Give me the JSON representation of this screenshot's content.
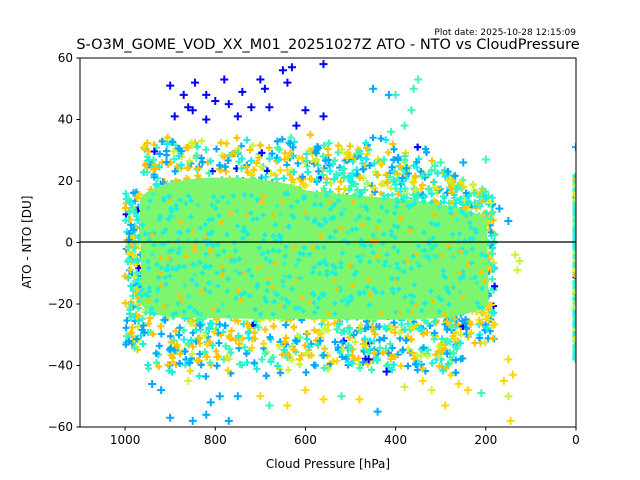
{
  "chart_data": {
    "type": "scatter",
    "title": "S-O3M_GOME_VOD_XX_M01_20251027Z ATO - NTO vs CloudPressure",
    "plot_date": "Plot date: 2025-10-28 12:15:09",
    "xlabel": "Cloud Pressure [hPa]",
    "ylabel": "ATO - NTO [DU]",
    "xlim": [
      1100,
      0
    ],
    "ylim": [
      -60,
      60
    ],
    "x_inverted": true,
    "grid": false,
    "legend": "none",
    "marker": "+",
    "x_ticks": [
      1000,
      800,
      600,
      400,
      200,
      0
    ],
    "x_tick_labels": [
      "1000",
      "800",
      "600",
      "400",
      "200",
      "0"
    ],
    "y_ticks": [
      60,
      40,
      20,
      0,
      -20,
      -40,
      -60
    ],
    "y_tick_labels": [
      "60",
      "40",
      "20",
      "0",
      "−20",
      "−40",
      "−60"
    ],
    "reference_line": {
      "y": 0,
      "color": "#000000"
    },
    "colors": {
      "core": "#7ef56f",
      "cyan": "#1af0e0",
      "aqua": "#3df5b8",
      "azure": "#00a8ff",
      "blue": "#0000ff",
      "yellow": "#ffd700",
      "gold": "#ffc400",
      "lime": "#c8f53a"
    },
    "core_region": {
      "x_range": [
        990,
        180
      ],
      "y_range": [
        -32,
        25
      ],
      "color_name": "core"
    },
    "edge_column": {
      "x": 0,
      "y_range": [
        -38,
        22
      ]
    },
    "outliers": [
      {
        "x": 900,
        "y": 51,
        "c": "blue"
      },
      {
        "x": 870,
        "y": 48,
        "c": "blue"
      },
      {
        "x": 845,
        "y": 52,
        "c": "blue"
      },
      {
        "x": 820,
        "y": 48,
        "c": "blue"
      },
      {
        "x": 780,
        "y": 53,
        "c": "blue"
      },
      {
        "x": 770,
        "y": 45,
        "c": "blue"
      },
      {
        "x": 740,
        "y": 49,
        "c": "blue"
      },
      {
        "x": 700,
        "y": 53,
        "c": "blue"
      },
      {
        "x": 690,
        "y": 50,
        "c": "blue"
      },
      {
        "x": 650,
        "y": 56,
        "c": "blue"
      },
      {
        "x": 630,
        "y": 57,
        "c": "blue"
      },
      {
        "x": 560,
        "y": 58,
        "c": "blue"
      },
      {
        "x": 640,
        "y": 52,
        "c": "blue"
      },
      {
        "x": 720,
        "y": 44,
        "c": "blue"
      },
      {
        "x": 680,
        "y": 44,
        "c": "blue"
      },
      {
        "x": 600,
        "y": 43,
        "c": "blue"
      },
      {
        "x": 560,
        "y": 41,
        "c": "blue"
      },
      {
        "x": 850,
        "y": 43,
        "c": "blue"
      },
      {
        "x": 820,
        "y": 40,
        "c": "blue"
      },
      {
        "x": 890,
        "y": 41,
        "c": "blue"
      },
      {
        "x": 860,
        "y": 44,
        "c": "blue"
      },
      {
        "x": 750,
        "y": 41,
        "c": "blue"
      },
      {
        "x": 800,
        "y": 46,
        "c": "blue"
      },
      {
        "x": 620,
        "y": 38,
        "c": "blue"
      },
      {
        "x": 450,
        "y": 50,
        "c": "azure"
      },
      {
        "x": 415,
        "y": 48,
        "c": "azure"
      },
      {
        "x": 400,
        "y": 48,
        "c": "aqua"
      },
      {
        "x": 350,
        "y": 53,
        "c": "aqua"
      },
      {
        "x": 360,
        "y": 50,
        "c": "aqua"
      },
      {
        "x": 365,
        "y": 43,
        "c": "aqua"
      },
      {
        "x": 380,
        "y": 38,
        "c": "aqua"
      },
      {
        "x": 410,
        "y": 36,
        "c": "aqua"
      },
      {
        "x": 300,
        "y": 26,
        "c": "aqua"
      },
      {
        "x": 250,
        "y": 26,
        "c": "azure"
      },
      {
        "x": 200,
        "y": 27,
        "c": "aqua"
      },
      {
        "x": 170,
        "y": 11,
        "c": "azure"
      },
      {
        "x": 150,
        "y": 7,
        "c": "azure"
      },
      {
        "x": 0,
        "y": 31,
        "c": "azure"
      },
      {
        "x": 850,
        "y": -58,
        "c": "azure"
      },
      {
        "x": 820,
        "y": -56,
        "c": "azure"
      },
      {
        "x": 770,
        "y": -58,
        "c": "azure"
      },
      {
        "x": 810,
        "y": -52,
        "c": "azure"
      },
      {
        "x": 790,
        "y": -50,
        "c": "azure"
      },
      {
        "x": 750,
        "y": -50,
        "c": "azure"
      },
      {
        "x": 900,
        "y": -57,
        "c": "azure"
      },
      {
        "x": 940,
        "y": -46,
        "c": "azure"
      },
      {
        "x": 920,
        "y": -48,
        "c": "azure"
      },
      {
        "x": 860,
        "y": -45,
        "c": "lime"
      },
      {
        "x": 700,
        "y": -50,
        "c": "yellow"
      },
      {
        "x": 680,
        "y": -53,
        "c": "aqua"
      },
      {
        "x": 640,
        "y": -53,
        "c": "yellow"
      },
      {
        "x": 600,
        "y": -48,
        "c": "yellow"
      },
      {
        "x": 560,
        "y": -51,
        "c": "yellow"
      },
      {
        "x": 520,
        "y": -50,
        "c": "aqua"
      },
      {
        "x": 480,
        "y": -51,
        "c": "yellow"
      },
      {
        "x": 440,
        "y": -55,
        "c": "azure"
      },
      {
        "x": 420,
        "y": -42,
        "c": "blue"
      },
      {
        "x": 460,
        "y": -38,
        "c": "blue"
      },
      {
        "x": 380,
        "y": -47,
        "c": "lime"
      },
      {
        "x": 340,
        "y": -45,
        "c": "yellow"
      },
      {
        "x": 320,
        "y": -48,
        "c": "lime"
      },
      {
        "x": 290,
        "y": -53,
        "c": "yellow"
      },
      {
        "x": 260,
        "y": -46,
        "c": "yellow"
      },
      {
        "x": 240,
        "y": -48,
        "c": "yellow"
      },
      {
        "x": 210,
        "y": -49,
        "c": "aqua"
      },
      {
        "x": 160,
        "y": -45,
        "c": "yellow"
      },
      {
        "x": 150,
        "y": -50,
        "c": "lime"
      },
      {
        "x": 140,
        "y": -43,
        "c": "yellow"
      },
      {
        "x": 150,
        "y": -38,
        "c": "yellow"
      },
      {
        "x": 145,
        "y": -58,
        "c": "yellow"
      },
      {
        "x": 130,
        "y": -9,
        "c": "lime"
      },
      {
        "x": 125,
        "y": -6,
        "c": "lime"
      },
      {
        "x": 135,
        "y": -4,
        "c": "lime"
      },
      {
        "x": 0,
        "y": -38,
        "c": "aqua"
      }
    ]
  }
}
